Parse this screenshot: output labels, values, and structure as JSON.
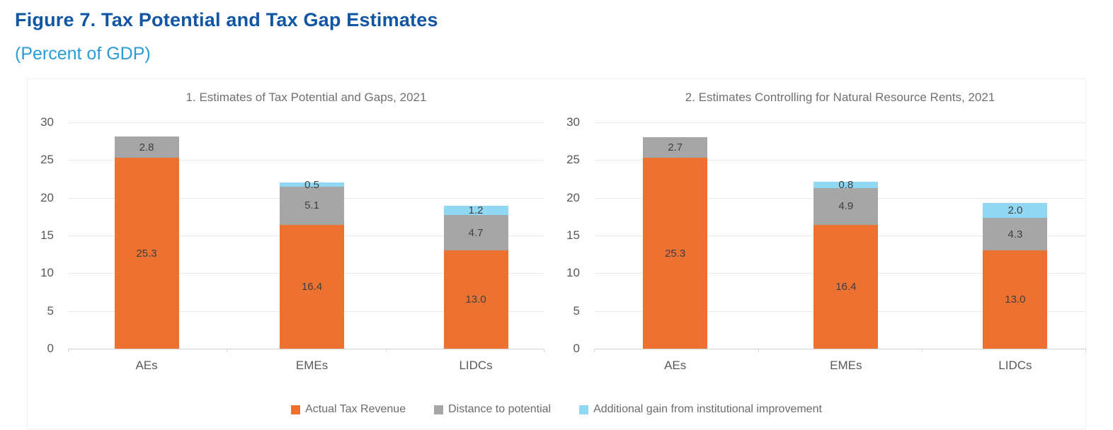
{
  "figure": {
    "title": "Figure 7. Tax Potential and Tax Gap Estimates",
    "subtitle": "(Percent of GDP)"
  },
  "colors": {
    "title_blue": "#1056A3",
    "subtitle_blue": "#2A9CD6",
    "orange": "#ED7131",
    "gray": "#A6A6A6",
    "light_blue": "#8FD7F2",
    "gridline": "#E9E9E9",
    "baseline": "#CFCFCF",
    "tick": "#D6D6D6",
    "axis_text": "#595959",
    "chart_title_text": "#707070",
    "data_label_text": "#3F3F3F",
    "legend_text": "#6B6B6B"
  },
  "chart_data": [
    {
      "type": "bar",
      "subtype": "stacked",
      "title": "1. Estimates of Tax Potential and Gaps, 2021",
      "categories": [
        "AEs",
        "EMEs",
        "LIDCs"
      ],
      "series": [
        {
          "name": "Actual Tax Revenue",
          "color": "#ED7131",
          "values": [
            25.3,
            16.4,
            13.0
          ]
        },
        {
          "name": "Distance to potential",
          "color": "#A6A6A6",
          "values": [
            2.8,
            5.1,
            4.7
          ]
        },
        {
          "name": "Additional gain from institutional improvement",
          "color": "#8FD7F2",
          "values": [
            0,
            0.5,
            1.2
          ]
        }
      ],
      "ylim": [
        0,
        30
      ],
      "yticks": [
        0,
        5,
        10,
        15,
        20,
        25,
        30
      ],
      "grid": true,
      "data_labels": "one-decimal, hidden when zero"
    },
    {
      "type": "bar",
      "subtype": "stacked",
      "title": "2. Estimates Controlling for Natural Resource Rents, 2021",
      "categories": [
        "AEs",
        "EMEs",
        "LIDCs"
      ],
      "series": [
        {
          "name": "Actual Tax Revenue",
          "color": "#ED7131",
          "values": [
            25.3,
            16.4,
            13.0
          ]
        },
        {
          "name": "Distance to potential",
          "color": "#A6A6A6",
          "values": [
            2.7,
            4.9,
            4.3
          ]
        },
        {
          "name": "Additional gain from institutional improvement",
          "color": "#8FD7F2",
          "values": [
            0,
            0.8,
            2.0
          ]
        }
      ],
      "ylim": [
        0,
        30
      ],
      "yticks": [
        0,
        5,
        10,
        15,
        20,
        25,
        30
      ],
      "grid": true,
      "data_labels": "one-decimal, hidden when zero"
    }
  ],
  "legend": {
    "position": "bottom-center",
    "items": [
      {
        "label": "Actual Tax Revenue",
        "color": "#ED7131"
      },
      {
        "label": "Distance to potential",
        "color": "#A6A6A6"
      },
      {
        "label": "Additional gain from institutional improvement",
        "color": "#8FD7F2"
      }
    ]
  }
}
